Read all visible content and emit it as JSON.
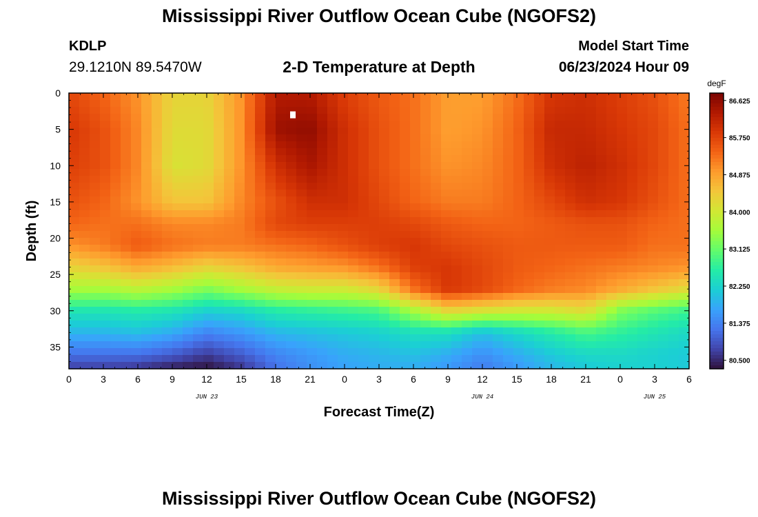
{
  "header": {
    "title": "Mississippi River Outflow Ocean Cube (NGOFS2)",
    "station_id": "KDLP",
    "station_coords": "29.1210N  89.5470W",
    "subtitle": "2-D Temperature at Depth",
    "start_label": "Model Start Time",
    "start_value": "06/23/2024 Hour 09"
  },
  "footer": {
    "title": "Mississippi River Outflow Ocean Cube (NGOFS2)"
  },
  "chart_data": {
    "type": "heatmap",
    "title": "2-D Temperature at Depth",
    "xlabel": "Forecast Time(Z)",
    "ylabel": "Depth (ft)",
    "colorbar_unit": "degF",
    "x_tick_labels": [
      "0",
      "3",
      "6",
      "9",
      "12",
      "15",
      "18",
      "21",
      "0",
      "3",
      "6",
      "9",
      "12",
      "15",
      "18",
      "21",
      "0",
      "3",
      "6"
    ],
    "x_day_labels": [
      {
        "label": "JUN 23",
        "at_hour": 12
      },
      {
        "label": "JUN 24",
        "at_hour": 36
      },
      {
        "label": "JUN 25",
        "at_hour": 51
      }
    ],
    "xlim_hours": [
      0,
      54
    ],
    "y_ticks": [
      0,
      5,
      10,
      15,
      20,
      25,
      30,
      35
    ],
    "ylim": [
      0,
      38
    ],
    "y_inverted": true,
    "clim": [
      80.3,
      86.8
    ],
    "colorbar_ticks": [
      "86.625",
      "85.750",
      "84.875",
      "84.000",
      "83.125",
      "82.250",
      "81.375",
      "80.500"
    ],
    "colorbar_tick_values": [
      86.625,
      85.75,
      84.875,
      84.0,
      83.125,
      82.25,
      81.375,
      80.5
    ],
    "colormap": [
      "#30123b",
      "#4145ab",
      "#4675ed",
      "#39a2fc",
      "#1bcfd4",
      "#24eca6",
      "#61fc6c",
      "#a4fc3b",
      "#d1e834",
      "#f3c63a",
      "#fe9b2d",
      "#f36315",
      "#d93806",
      "#b11901",
      "#7a0402"
    ],
    "time_hours": [
      0,
      3,
      6,
      9,
      12,
      15,
      18,
      21,
      24,
      27,
      30,
      33,
      36,
      39,
      42,
      45,
      48,
      51,
      54
    ],
    "depth_ft": [
      0,
      5,
      10,
      15,
      18,
      21,
      24,
      27,
      30,
      33,
      36,
      38
    ],
    "temperature_degF": [
      [
        85.7,
        85.4,
        85.0,
        84.3,
        84.3,
        85.0,
        86.3,
        86.3,
        85.8,
        85.5,
        85.3,
        84.9,
        84.9,
        85.3,
        85.9,
        86.0,
        85.8,
        85.6,
        85.2
      ],
      [
        85.9,
        85.6,
        85.1,
        84.2,
        84.2,
        85.0,
        86.5,
        86.6,
        86.0,
        85.6,
        85.3,
        84.9,
        85.0,
        85.4,
        86.1,
        86.1,
        85.9,
        85.7,
        85.3
      ],
      [
        85.8,
        85.6,
        85.1,
        84.1,
        84.2,
        85.0,
        86.0,
        86.4,
        86.0,
        85.6,
        85.3,
        85.0,
        85.1,
        85.4,
        86.0,
        86.2,
        86.0,
        85.7,
        85.3
      ],
      [
        85.6,
        85.4,
        85.0,
        84.5,
        84.5,
        85.1,
        85.6,
        86.0,
        86.0,
        85.7,
        85.4,
        85.2,
        85.2,
        85.4,
        85.7,
        86.0,
        85.9,
        85.6,
        85.3
      ],
      [
        85.4,
        85.3,
        85.3,
        85.1,
        85.1,
        85.2,
        85.7,
        85.8,
        85.8,
        85.8,
        85.7,
        85.5,
        85.4,
        85.4,
        85.5,
        85.6,
        85.6,
        85.4,
        85.3
      ],
      [
        85.0,
        85.2,
        85.5,
        85.3,
        85.2,
        85.2,
        85.3,
        85.4,
        85.6,
        85.8,
        85.9,
        85.7,
        85.6,
        85.5,
        85.5,
        85.5,
        85.5,
        85.3,
        85.3
      ],
      [
        84.3,
        84.5,
        84.8,
        84.6,
        84.3,
        84.5,
        84.8,
        84.9,
        85.0,
        85.3,
        85.8,
        85.9,
        85.7,
        85.5,
        85.4,
        85.3,
        85.2,
        85.1,
        85.0
      ],
      [
        83.6,
        83.6,
        83.8,
        83.6,
        83.3,
        83.6,
        83.9,
        84.0,
        84.0,
        84.3,
        85.3,
        85.9,
        85.7,
        85.4,
        85.2,
        85.1,
        84.8,
        84.5,
        84.2
      ],
      [
        82.5,
        82.5,
        82.6,
        82.5,
        82.2,
        82.3,
        82.6,
        82.7,
        82.8,
        82.9,
        83.6,
        84.3,
        84.1,
        84.0,
        84.0,
        84.2,
        83.3,
        83.0,
        82.8
      ],
      [
        81.9,
        81.9,
        82.0,
        81.8,
        81.4,
        81.6,
        81.9,
        82.0,
        82.1,
        82.2,
        82.4,
        82.4,
        82.0,
        82.3,
        82.6,
        82.9,
        82.7,
        82.5,
        82.3
      ],
      [
        81.2,
        81.2,
        81.2,
        81.0,
        80.7,
        81.0,
        81.4,
        81.6,
        81.8,
        81.9,
        82.0,
        81.8,
        81.5,
        81.8,
        82.1,
        82.3,
        82.3,
        82.2,
        82.1
      ],
      [
        80.7,
        80.7,
        80.6,
        80.4,
        80.3,
        80.6,
        81.2,
        81.5,
        81.7,
        81.8,
        81.8,
        81.6,
        81.3,
        81.6,
        81.9,
        82.1,
        82.2,
        82.2,
        82.1
      ]
    ],
    "marker": {
      "hour": 19.5,
      "depth_ft": 3
    }
  }
}
